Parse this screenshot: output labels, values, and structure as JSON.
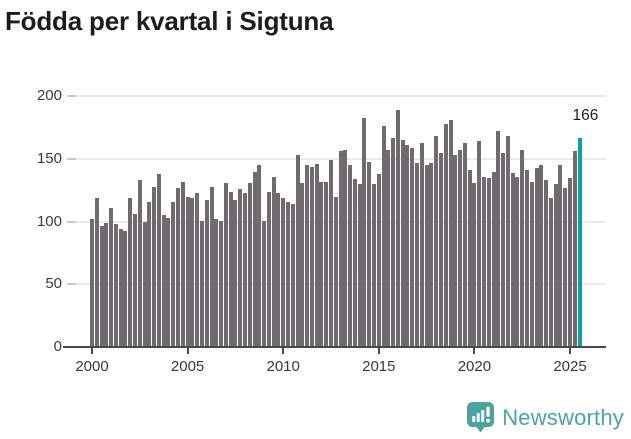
{
  "title": "Födda per kvartal i Sigtuna",
  "annotation": {
    "value_label": "166"
  },
  "footer": {
    "brand": "Newsworthy"
  },
  "colors": {
    "bar": "#6F6B6F",
    "highlight": "#0AA2A6",
    "logo": "#4BA49E",
    "axis": "#4A4A4A",
    "grid": "#EBEBEB",
    "tick_text": "#3A3A3A",
    "title_text": "#1C1C1C"
  },
  "chart_data": {
    "type": "bar",
    "title": "Födda per kvartal i Sigtuna",
    "frequency": "quarterly",
    "x_start": "2000-Q1",
    "x_end": "2025-Q3",
    "x_tick_labels": [
      "2000",
      "2005",
      "2010",
      "2015",
      "2020",
      "2025"
    ],
    "y_ticks": [
      0,
      50,
      100,
      150,
      200
    ],
    "ylim": [
      0,
      200
    ],
    "grid": true,
    "highlight_last": true,
    "last_value": 166,
    "values": [
      101,
      118,
      96,
      98,
      110,
      97,
      93,
      92,
      118,
      105,
      132,
      99,
      115,
      127,
      137,
      104,
      102,
      115,
      126,
      131,
      119,
      118,
      122,
      100,
      116,
      127,
      101,
      100,
      130,
      123,
      116,
      125,
      122,
      130,
      139,
      144,
      100,
      123,
      135,
      122,
      118,
      115,
      113,
      152,
      130,
      144,
      143,
      145,
      131,
      131,
      148,
      119,
      155,
      156,
      144,
      133,
      129,
      182,
      147,
      129,
      137,
      175,
      156,
      166,
      188,
      164,
      160,
      158,
      146,
      162,
      144,
      146,
      167,
      154,
      177,
      180,
      152,
      156,
      162,
      140,
      130,
      163,
      135,
      134,
      139,
      171,
      154,
      167,
      138,
      135,
      156,
      140,
      131,
      142,
      144,
      132,
      118,
      129,
      144,
      126,
      134,
      155,
      166
    ]
  }
}
